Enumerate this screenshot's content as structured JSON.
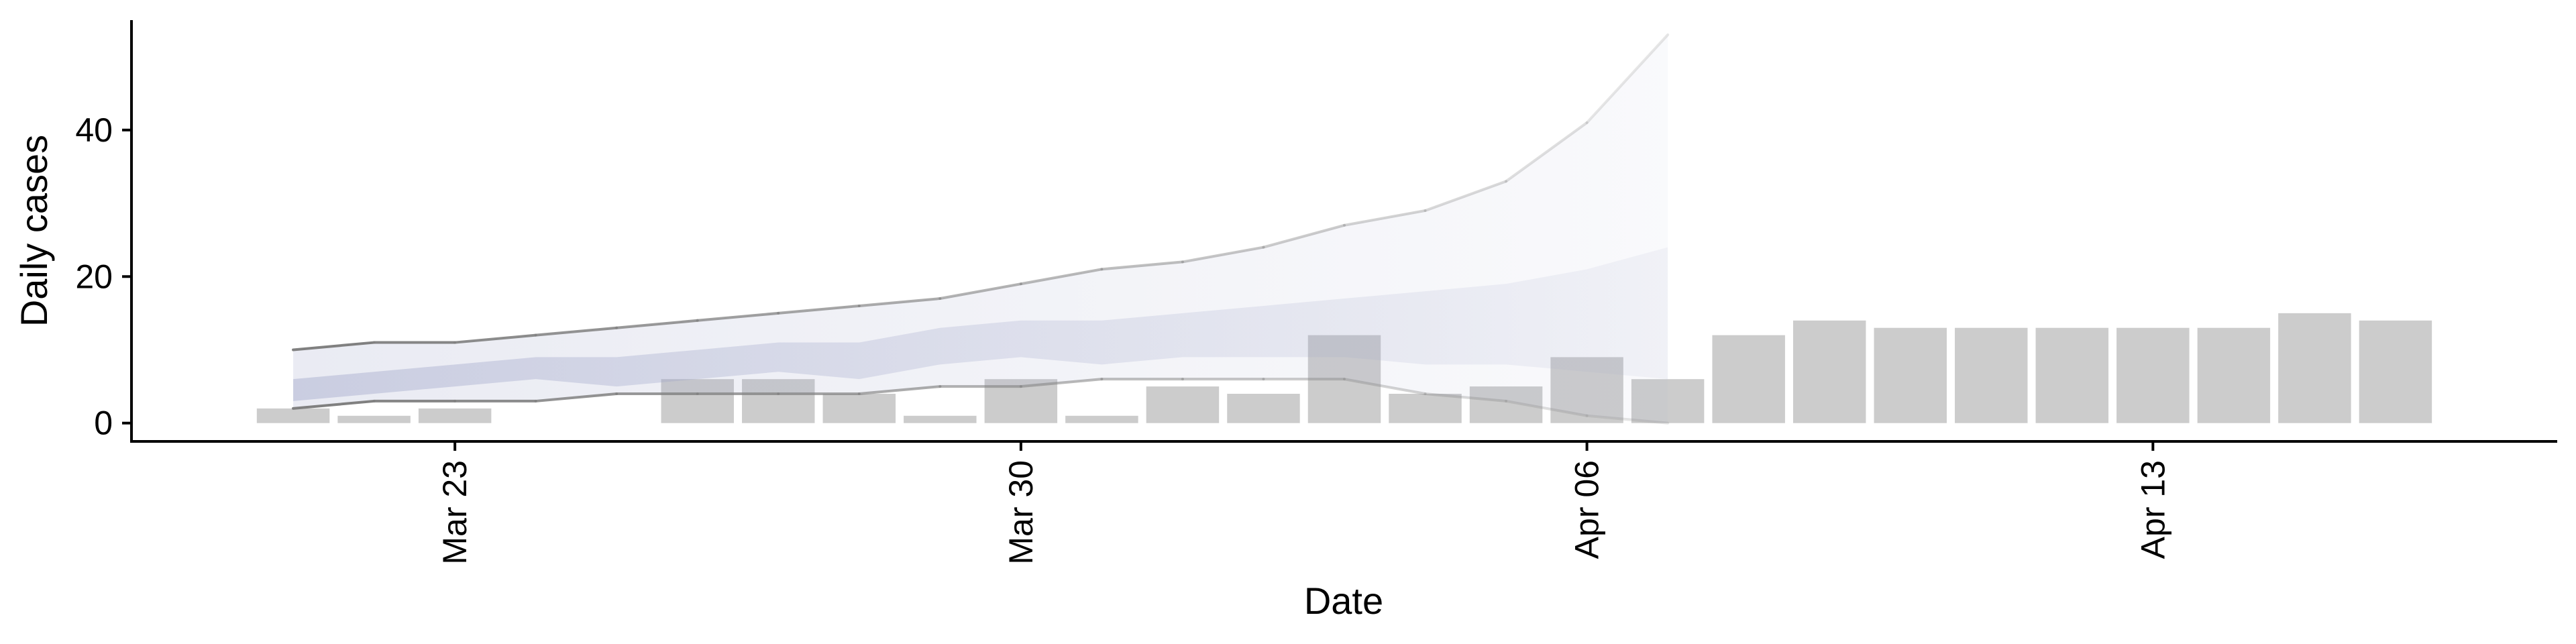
{
  "chart_data": {
    "type": "bar",
    "xlabel": "Date",
    "ylabel": "Daily cases",
    "ylim": [
      -2.5,
      55
    ],
    "y_ticks": [
      0,
      20,
      40
    ],
    "x_ticks": [
      {
        "date": "2020-03-23",
        "label": "Mar 23"
      },
      {
        "date": "2020-03-30",
        "label": "Mar 30"
      },
      {
        "date": "2020-04-06",
        "label": "Apr 06"
      },
      {
        "date": "2020-04-13",
        "label": "Apr 13"
      }
    ],
    "xlim": [
      "2020-03-19",
      "2020-04-18"
    ],
    "bars": {
      "color": "#cccccc",
      "dates": [
        "2020-03-21",
        "2020-03-22",
        "2020-03-23",
        "2020-03-24",
        "2020-03-25",
        "2020-03-26",
        "2020-03-27",
        "2020-03-28",
        "2020-03-29",
        "2020-03-30",
        "2020-03-31",
        "2020-04-01",
        "2020-04-02",
        "2020-04-03",
        "2020-04-04",
        "2020-04-05",
        "2020-04-06",
        "2020-04-07",
        "2020-04-08",
        "2020-04-09",
        "2020-04-10",
        "2020-04-11",
        "2020-04-12",
        "2020-04-13",
        "2020-04-14",
        "2020-04-15",
        "2020-04-16",
        "2020-04-17"
      ],
      "values": [
        2,
        1,
        2,
        0,
        0,
        6,
        6,
        4,
        1,
        6,
        1,
        5,
        4,
        12,
        4,
        5,
        9,
        6,
        12,
        14,
        13,
        13,
        13,
        13,
        13,
        15,
        14,
        0
      ]
    },
    "forecast": {
      "dates": [
        "2020-03-21",
        "2020-03-22",
        "2020-03-23",
        "2020-03-24",
        "2020-03-25",
        "2020-03-26",
        "2020-03-27",
        "2020-03-28",
        "2020-03-29",
        "2020-03-30",
        "2020-03-31",
        "2020-04-01",
        "2020-04-02",
        "2020-04-03",
        "2020-04-04",
        "2020-04-05",
        "2020-04-06",
        "2020-04-07"
      ],
      "outer_upper": [
        10,
        11,
        11,
        12,
        13,
        14,
        15,
        16,
        17,
        19,
        21,
        22,
        24,
        27,
        29,
        33,
        41,
        53
      ],
      "outer_lower": [
        2,
        3,
        3,
        3,
        4,
        4,
        4,
        4,
        5,
        5,
        6,
        6,
        6,
        6,
        4,
        3,
        1,
        0
      ],
      "inner_upper": [
        6,
        7,
        8,
        9,
        9,
        10,
        11,
        11,
        13,
        14,
        14,
        15,
        16,
        17,
        18,
        19,
        21,
        24
      ],
      "inner_lower": [
        3,
        4,
        5,
        6,
        5,
        6,
        7,
        6,
        8,
        9,
        8,
        9,
        9,
        9,
        8,
        8,
        7,
        6
      ],
      "band_color": "#9ea4c8",
      "line_color": "#808080"
    }
  }
}
